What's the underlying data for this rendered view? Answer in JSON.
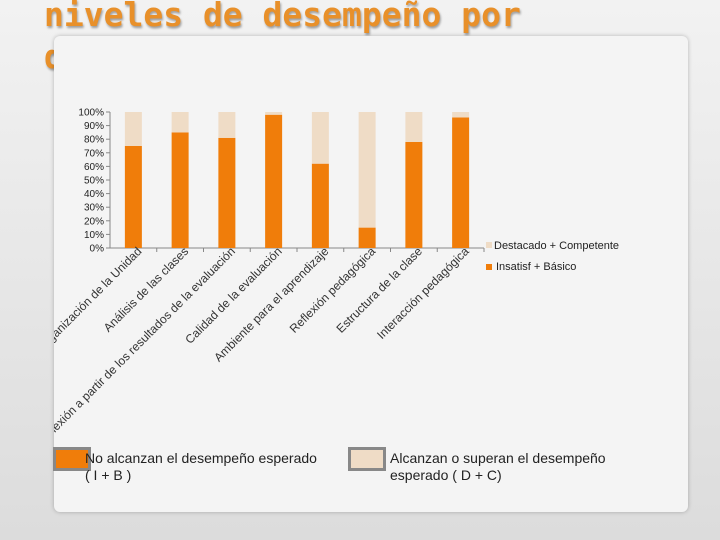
{
  "title": "niveles de desempeño por dimensión",
  "colors": {
    "low": "#f07d0a",
    "high": "#efdcc6",
    "title": "#e8902a"
  },
  "chart_data": {
    "type": "bar",
    "stacked": true,
    "ylim": [
      0,
      100
    ],
    "yticks": [
      "0%",
      "10%",
      "20%",
      "30%",
      "40%",
      "50%",
      "60%",
      "70%",
      "80%",
      "90%",
      "100%"
    ],
    "categories": [
      "Organización de la Unidad",
      "Análisis de las clases",
      "Reflexión a partir de los resultados de la evaluación",
      "Calidad de la evaluación",
      "Ambiente para el aprendizaje",
      "Reflexión pedagógica",
      "Estructura de la clase",
      "Interacción pedagógica"
    ],
    "series": [
      {
        "name": "Insatisf + Básico",
        "values": [
          75,
          85,
          81,
          98,
          62,
          15,
          78,
          96
        ]
      },
      {
        "name": "Destacado + Competente",
        "values": [
          25,
          15,
          19,
          2,
          38,
          85,
          22,
          4
        ]
      }
    ],
    "legend_position": "right"
  },
  "notes": {
    "left": [
      "No alcanzan el desempeño esperado",
      "( I + B )"
    ],
    "right": [
      "Alcanzan o superan el desempeño",
      "esperado ( D + C)"
    ]
  }
}
